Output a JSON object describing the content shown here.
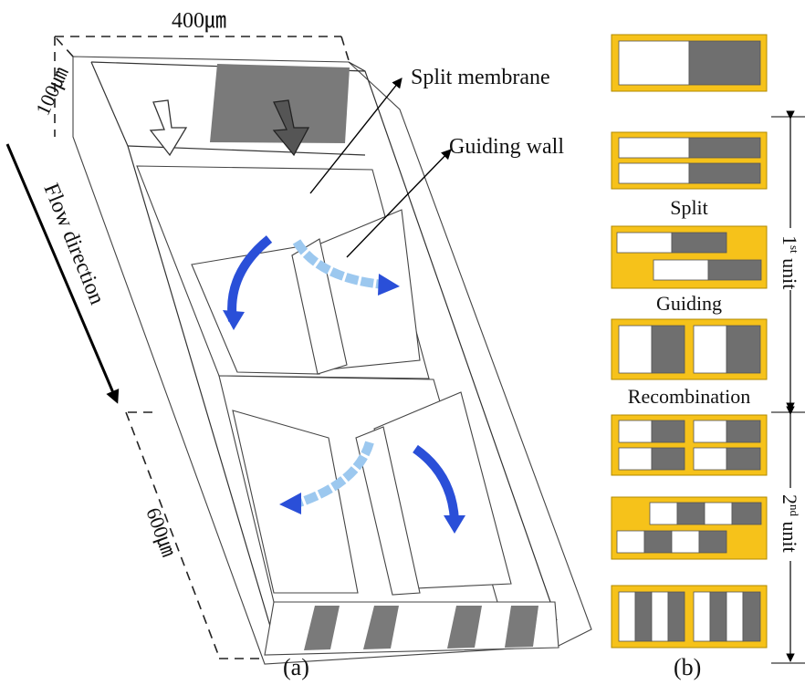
{
  "labels": {
    "width": "400㎛",
    "height": "100㎛",
    "length": "600㎛",
    "flow_direction": "Flow direction",
    "split_membrane": "Split membrane",
    "guiding_wall": "Guiding wall",
    "panel_a": "(a)",
    "panel_b": "(b)"
  },
  "panel_b": {
    "stage_labels": [
      "Split",
      "Guiding",
      "Recombination"
    ],
    "unit1": {
      "ordinal": "1",
      "sup": "st",
      "word": " unit"
    },
    "unit2": {
      "ordinal": "2",
      "sup": "nd",
      "word": " unit"
    }
  },
  "colors": {
    "channel_wall": "#ffffff",
    "fluid_dark": "#7a7a7a",
    "fluid_light": "#ffffff",
    "cross_section_frame": "#f6c21a",
    "arrow_blue": "#2a4fd8",
    "arrow_light_blue": "#9cc8ef"
  }
}
